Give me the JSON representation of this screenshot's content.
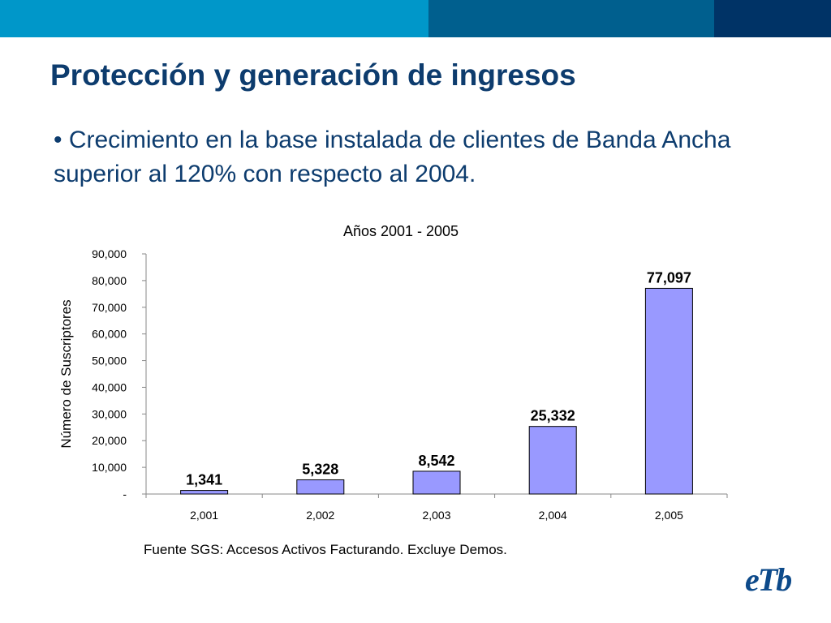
{
  "colors": {
    "bar_left": "#0097c9",
    "bar_mid": "#005f8e",
    "bar_right": "#003366",
    "title": "#0d3c6e",
    "bullet": "#0d3c6e",
    "bar_fill": "#9999ff",
    "bar_stroke": "#000000",
    "logo": "#0d4a8a"
  },
  "slide": {
    "title": "Protección y generación de ingresos",
    "bullet": "• Crecimiento en la base instalada de clientes de Banda Ancha superior al 120% con respecto al 2004.",
    "source": "Fuente SGS: Accesos Activos Facturando. Excluye Demos."
  },
  "logo": {
    "icon": "etb-logo-icon",
    "text": "eTb"
  },
  "chart_data": {
    "type": "bar",
    "title": "Años 2001 - 2005",
    "xlabel": "",
    "ylabel": "Número de Suscriptores",
    "categories": [
      "2,001",
      "2,002",
      "2,003",
      "2,004",
      "2,005"
    ],
    "values": [
      1341,
      5328,
      8542,
      25332,
      77097
    ],
    "data_labels": [
      "1,341",
      "5,328",
      "8,542",
      "25,332",
      "77,097"
    ],
    "ylim": [
      0,
      90000
    ],
    "yticks": [
      0,
      10000,
      20000,
      30000,
      40000,
      50000,
      60000,
      70000,
      80000,
      90000
    ],
    "ytick_labels": [
      "-",
      "10,000",
      "20,000",
      "30,000",
      "40,000",
      "50,000",
      "60,000",
      "70,000",
      "80,000",
      "90,000"
    ],
    "grid": false,
    "legend": "none"
  }
}
